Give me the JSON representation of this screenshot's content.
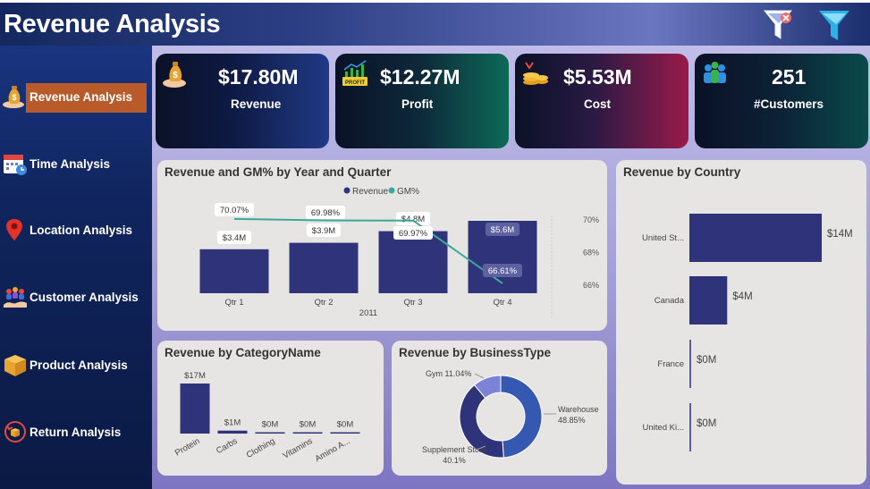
{
  "header": {
    "title": "Revenue Analysis",
    "icons": [
      "clear-filter-icon",
      "filter-icon"
    ]
  },
  "sidebar": {
    "items": [
      {
        "label": "Revenue Analysis",
        "icon": "money-bag-icon",
        "active": true
      },
      {
        "label": "Time Analysis",
        "icon": "calendar-icon",
        "active": false
      },
      {
        "label": "Location Analysis",
        "icon": "location-pin-icon",
        "active": false
      },
      {
        "label": "Customer Analysis",
        "icon": "customers-icon",
        "active": false
      },
      {
        "label": "Product Analysis",
        "icon": "box-icon",
        "active": false
      },
      {
        "label": "Return Analysis",
        "icon": "return-box-icon",
        "active": false
      }
    ]
  },
  "kpis": [
    {
      "value": "$17.80M",
      "label": "Revenue",
      "icon": "money-bag-icon"
    },
    {
      "value": "$12.27M",
      "label": "Profit",
      "icon": "profit-chart-icon"
    },
    {
      "value": "$5.53M",
      "label": "Cost",
      "icon": "coins-icon"
    },
    {
      "value": "251",
      "label": "#Customers",
      "icon": "people-icon"
    }
  ],
  "colors": {
    "bar": "#2f337a",
    "line": "#3aa99a",
    "donut_dark": "#2f337a",
    "donut_blue": "#3558b0",
    "donut_light": "#7b83d6",
    "active_nav": "#b85a2a"
  },
  "chart_data": [
    {
      "id": "revenue-gm",
      "type": "bar",
      "title": "Revenue and GM% by Year and Quarter",
      "legend": [
        "Revenue",
        "GM%"
      ],
      "legend_position": "top",
      "categories": [
        "Qtr 1",
        "Qtr 2",
        "Qtr 3",
        "Qtr 4"
      ],
      "xgroup_label": "2011",
      "series": [
        {
          "name": "Revenue",
          "values": [
            3.4,
            3.9,
            4.8,
            5.6
          ],
          "labels": [
            "$3.4M",
            "$3.9M",
            "$4.8M",
            "$5.6M"
          ]
        },
        {
          "name": "GM%",
          "values": [
            70.07,
            69.98,
            69.97,
            66.61
          ],
          "labels": [
            "70.07%",
            "69.98%",
            "69.97%",
            "66.61%"
          ]
        }
      ],
      "y2_ticks": [
        "70%",
        "68%",
        "66%"
      ],
      "y2lim": [
        65.5,
        71
      ]
    },
    {
      "id": "revenue-country",
      "type": "bar",
      "orientation": "horizontal",
      "title": "Revenue by Country",
      "categories": [
        "United St...",
        "Canada",
        "France",
        "United Ki..."
      ],
      "values": [
        14,
        4,
        0,
        0
      ],
      "labels": [
        "$14M",
        "$4M",
        "$0M",
        "$0M"
      ]
    },
    {
      "id": "revenue-category",
      "type": "bar",
      "title": "Revenue by CategoryName",
      "categories": [
        "Protein",
        "Carbs",
        "Clothing",
        "Vitamins",
        "Amino A..."
      ],
      "values": [
        17,
        1,
        0,
        0,
        0
      ],
      "labels": [
        "$17M",
        "$1M",
        "$0M",
        "$0M",
        "$0M"
      ]
    },
    {
      "id": "revenue-business",
      "type": "pie",
      "donut": true,
      "title": "Revenue by BusinessType",
      "slices": [
        {
          "name": "Warehouse",
          "value": 48.85,
          "label": "48.85%"
        },
        {
          "name": "Supplement Store",
          "value": 40.1,
          "label": "40.1%"
        },
        {
          "name": "Gym",
          "value": 11.04,
          "label": "11.04%"
        }
      ]
    }
  ]
}
